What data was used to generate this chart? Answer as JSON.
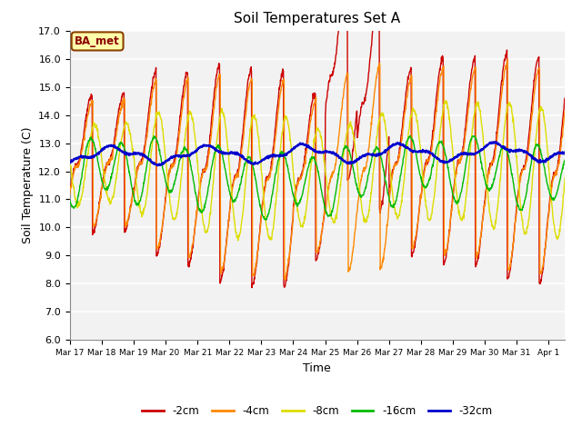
{
  "title": "Soil Temperatures Set A",
  "xlabel": "Time",
  "ylabel": "Soil Temperature (C)",
  "ylim": [
    6.0,
    17.0
  ],
  "yticks": [
    6.0,
    7.0,
    8.0,
    9.0,
    10.0,
    11.0,
    12.0,
    13.0,
    14.0,
    15.0,
    16.0,
    17.0
  ],
  "line_colors": {
    "-2cm": "#cc0000",
    "-4cm": "#ff8800",
    "-8cm": "#dddd00",
    "-16cm": "#00bb00",
    "-32cm": "#0000cc"
  },
  "legend_label": "BA_met",
  "bg_color": "#ffffff",
  "plot_bg_color": "#f2f2f2",
  "grid_color": "#ffffff",
  "tick_labels": [
    "Mar 17",
    "Mar 18",
    "Mar 19",
    "Mar 20",
    "Mar 21",
    "Mar 22",
    "Mar 23",
    "Mar 24",
    "Mar 25",
    "Mar 26",
    "Mar 27",
    "Mar 28",
    "Mar 29",
    "Mar 30",
    "Mar 31",
    "Apr 1"
  ]
}
